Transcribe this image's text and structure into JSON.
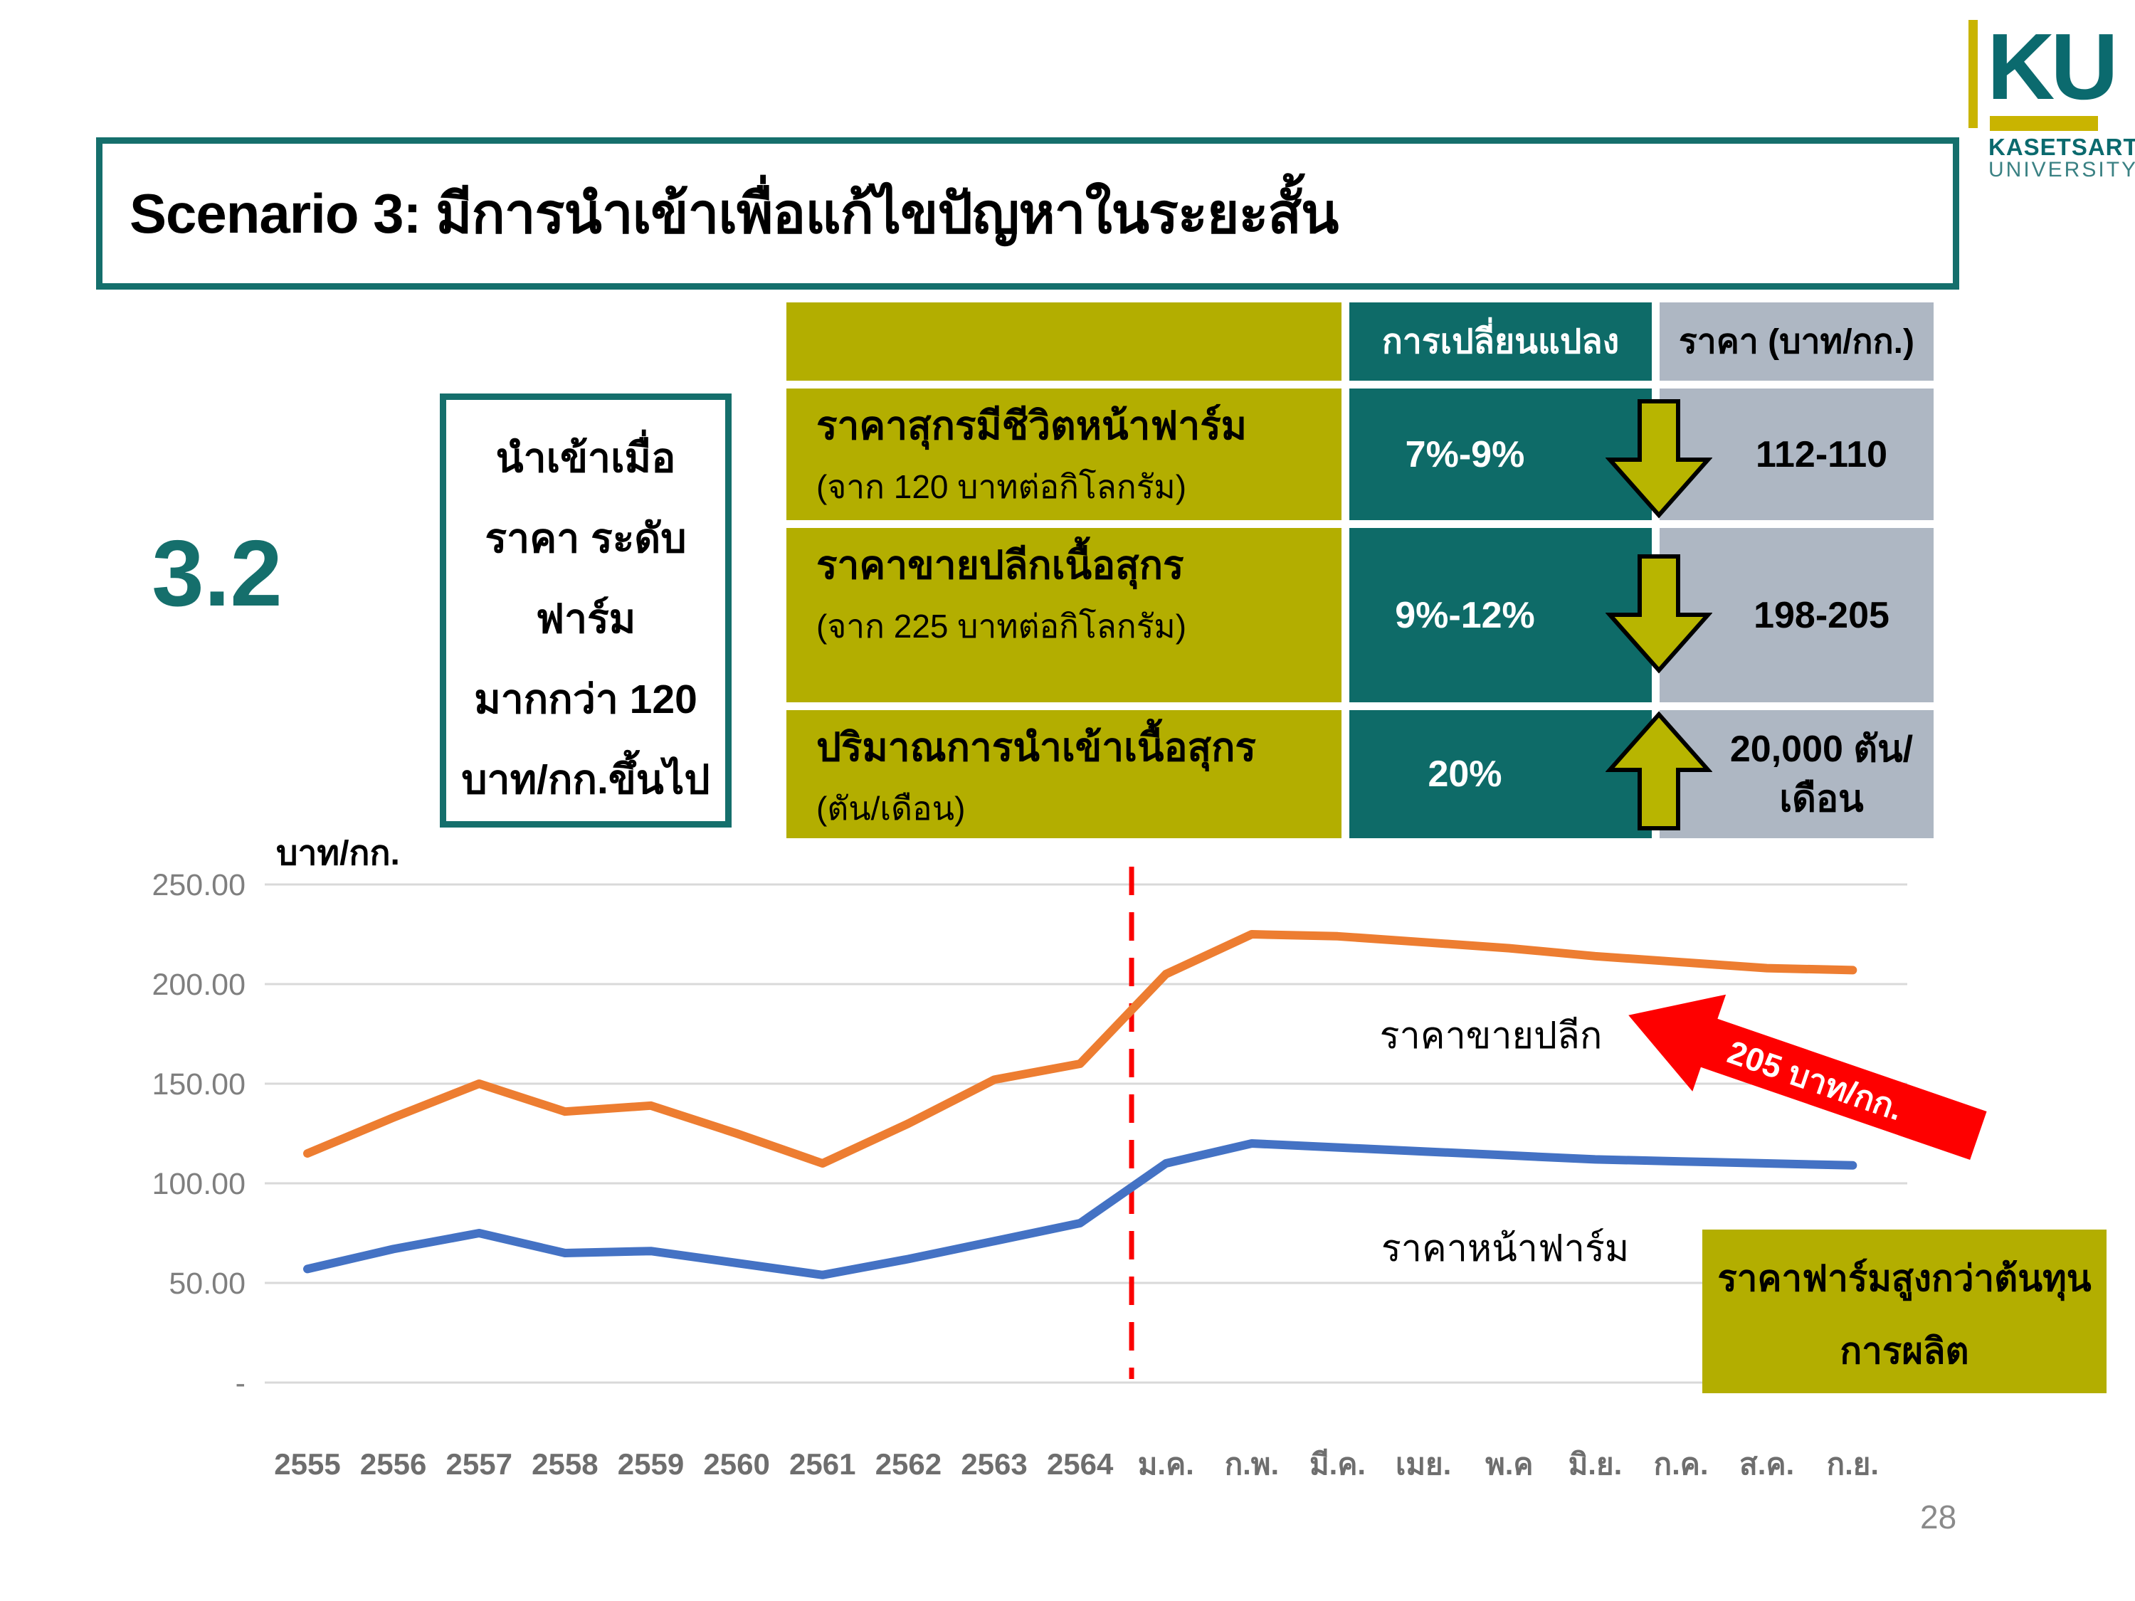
{
  "slide": {
    "title": "Scenario 3: มีการนำเข้าเพื่อแก้ไขปัญหาในระยะสั้น",
    "section_number": "3.2",
    "page_number": "28"
  },
  "logo": {
    "ku": "KU",
    "line1": "KASETSART",
    "line2": "UNIVERSITY",
    "teal": "#0b6a6e",
    "yellow": "#c9b400"
  },
  "condition_box": {
    "lines": [
      "นำเข้าเมื่อ",
      "ราคา ระดับ",
      "ฟาร์ม",
      "มากกว่า 120",
      "บาท/กก.ขึ้นไป"
    ]
  },
  "table": {
    "headers": {
      "change": "การเปลี่ยนแปลง",
      "price": "ราคา (บาท/กก.)"
    },
    "rows": [
      {
        "label": "ราคาสุกรมีชีวิตหน้าฟาร์ม",
        "sublabel": "(จาก 120 บาทต่อกิโลกรัม)",
        "change": "7%-9%",
        "direction": "down",
        "price": "112-110",
        "price2": ""
      },
      {
        "label": "ราคาขายปลีกเนื้อสุกร",
        "sublabel": "(จาก 225 บาทต่อกิโลกรัม)",
        "change": "9%-12%",
        "direction": "down",
        "price": "198-205",
        "price2": ""
      },
      {
        "label": "ปริมาณการนำเข้าเนื้อสุกร",
        "sublabel": "(ตัน/เดือน)",
        "change": "20%",
        "direction": "up",
        "price": "20,000 ตัน/",
        "price2": "เดือน"
      }
    ],
    "colors": {
      "label_col": "#b3ae00",
      "change_col": "#0e6b68",
      "price_col": "#aeb7c3",
      "arrow_fill": "#b8b500"
    }
  },
  "chart_data": {
    "type": "line",
    "title": "",
    "xlabel": "",
    "ylabel": "บาท/กก.",
    "ylim": [
      0,
      250
    ],
    "grid": true,
    "legend_position": "inline-labels",
    "categories": [
      "2555",
      "2556",
      "2557",
      "2558",
      "2559",
      "2560",
      "2561",
      "2562",
      "2563",
      "2564",
      "ม.ค.",
      "ก.พ.",
      "มี.ค.",
      "เมย.",
      "พ.ค",
      "มิ.ย.",
      "ก.ค.",
      "ส.ค.",
      "ก.ย."
    ],
    "ytick_values": [
      250,
      200,
      150,
      100,
      50,
      0
    ],
    "ytick_labels": [
      "250.00",
      "200.00",
      "150.00",
      "100.00",
      "50.00",
      "-"
    ],
    "series": [
      {
        "name": "ราคาขายปลีก",
        "color": "#ED7D31",
        "values": [
          115,
          133,
          150,
          136,
          139,
          125,
          110,
          130,
          152,
          160,
          205,
          225,
          224,
          221,
          218,
          214,
          211,
          208,
          207
        ]
      },
      {
        "name": "ราคาหน้าฟาร์ม",
        "color": "#4472C4",
        "values": [
          57,
          67,
          75,
          65,
          66,
          60,
          54,
          62,
          71,
          80,
          110,
          120,
          118,
          116,
          114,
          112,
          111,
          110,
          109
        ]
      }
    ],
    "divider": {
      "after_category": "2564",
      "color": "#fb0000",
      "style": "dashed"
    },
    "annotations": {
      "arrow_label": "205 บาท/กก.",
      "arrow_color": "#fe0000",
      "info_box": [
        "ราคาฟาร์มสูงกว่าต้นทุน",
        "การผลิต"
      ]
    }
  }
}
